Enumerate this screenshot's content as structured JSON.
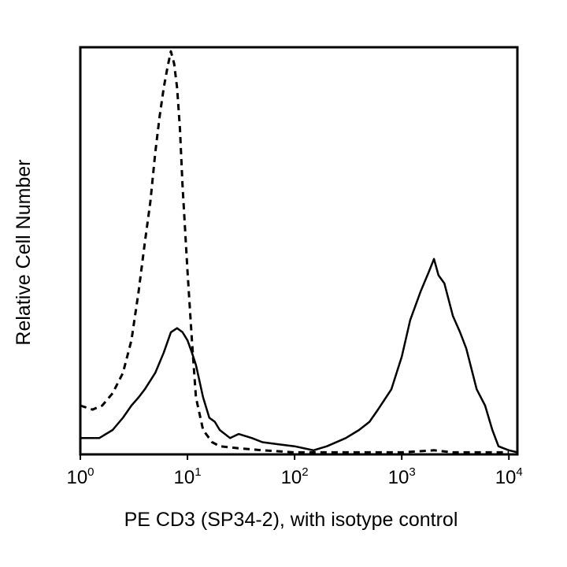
{
  "chart_data": {
    "type": "line",
    "title": "",
    "xlabel": "PE CD3 (SP34-2), with isotype control",
    "ylabel": "Relative Cell Number",
    "x_scale": "log",
    "xlim": [
      1,
      12000
    ],
    "ylim": [
      0,
      100
    ],
    "grid": false,
    "x_ticks": [
      {
        "value": 1,
        "base": "10",
        "exp": "0"
      },
      {
        "value": 10,
        "base": "10",
        "exp": "1"
      },
      {
        "value": 100,
        "base": "10",
        "exp": "2"
      },
      {
        "value": 1000,
        "base": "10",
        "exp": "3"
      },
      {
        "value": 10000,
        "base": "10",
        "exp": "4"
      }
    ],
    "series": [
      {
        "style": "dashed",
        "x": [
          1,
          1.3,
          1.6,
          2,
          2.5,
          3,
          3.5,
          4,
          4.5,
          5,
          5.5,
          6,
          6.5,
          7,
          7.5,
          8,
          8.5,
          9,
          10,
          11,
          12,
          14,
          17,
          20,
          30,
          50,
          100,
          200,
          500,
          1000,
          2000,
          3000,
          5000,
          10000
        ],
        "y": [
          12,
          11,
          12,
          15,
          20,
          28,
          40,
          52,
          62,
          74,
          83,
          90,
          95,
          99,
          96,
          90,
          80,
          66,
          45,
          28,
          14,
          6,
          3,
          2,
          1.5,
          1,
          0.5,
          0.5,
          0.5,
          0.5,
          1,
          0.5,
          0.5,
          0.5
        ]
      },
      {
        "style": "solid",
        "x": [
          1,
          1.5,
          2,
          2.5,
          3,
          3.5,
          4,
          5,
          6,
          7,
          8,
          9,
          10,
          11,
          12,
          14,
          16,
          18,
          20,
          25,
          30,
          40,
          50,
          70,
          100,
          150,
          200,
          300,
          400,
          500,
          600,
          800,
          1000,
          1200,
          1500,
          1800,
          2000,
          2200,
          2500,
          3000,
          3500,
          4000,
          5000,
          6000,
          7000,
          8000,
          10000,
          12000
        ],
        "y": [
          4,
          4,
          6,
          9,
          12,
          14,
          16,
          20,
          25,
          30,
          31,
          30,
          28,
          25,
          22,
          14,
          9,
          8,
          6,
          4,
          5,
          4,
          3,
          2.5,
          2,
          1,
          2,
          4,
          6,
          8,
          11,
          16,
          24,
          33,
          40,
          45,
          48,
          44,
          42,
          34,
          30,
          26,
          16,
          12,
          6,
          2,
          1,
          0.5
        ]
      }
    ]
  }
}
